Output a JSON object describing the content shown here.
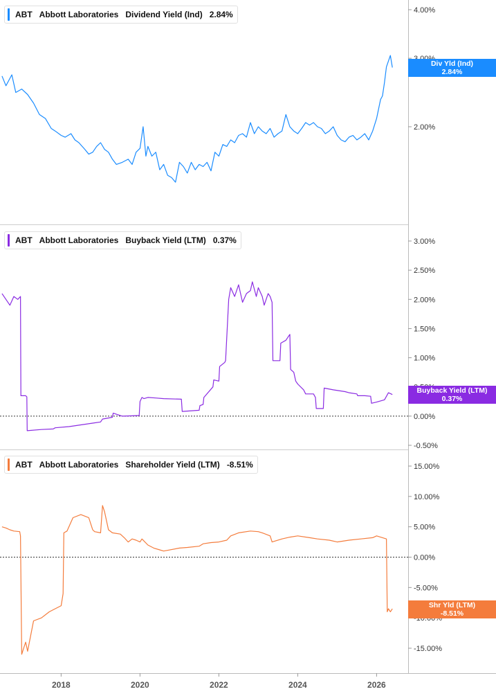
{
  "panels": [
    {
      "ticker": "ABT",
      "company": "Abbott Laboratories",
      "metric": "Dividend Yield (Ind)",
      "value": "2.84%",
      "tag_line1": "Div Yld (Ind)",
      "tag_line2": "2.84%",
      "color": "#1a8cff",
      "tag_color": "#1a8cff"
    },
    {
      "ticker": "ABT",
      "company": "Abbott Laboratories",
      "metric": "Buyback Yield (LTM)",
      "value": "0.37%",
      "tag_line1": "Buyback Yield (LTM)",
      "tag_line2": "0.37%",
      "color": "#8a2be2",
      "tag_color": "#8a2be2"
    },
    {
      "ticker": "ABT",
      "company": "Abbott Laboratories",
      "metric": "Shareholder Yield (LTM)",
      "value": "-8.51%",
      "tag_line1": "Shr Yld (LTM)",
      "tag_line2": "-8.51%",
      "color": "#f47c3c",
      "tag_color": "#f47c3c"
    }
  ],
  "chart_data": [
    {
      "type": "line",
      "title": "",
      "series": [
        {
          "name": "Dividend Yield (Ind)",
          "x": [
            2016.5,
            2016.6,
            2016.75,
            2016.85,
            2017.0,
            2017.15,
            2017.3,
            2017.45,
            2017.6,
            2017.75,
            2017.85,
            2018.0,
            2018.1,
            2018.25,
            2018.35,
            2018.45,
            2018.6,
            2018.7,
            2018.8,
            2018.9,
            2019.0,
            2019.1,
            2019.2,
            2019.3,
            2019.4,
            2019.55,
            2019.7,
            2019.8,
            2019.9,
            2020.0,
            2020.08,
            2020.15,
            2020.2,
            2020.3,
            2020.4,
            2020.5,
            2020.6,
            2020.7,
            2020.8,
            2020.9,
            2021.0,
            2021.1,
            2021.2,
            2021.3,
            2021.4,
            2021.5,
            2021.6,
            2021.7,
            2021.8,
            2021.9,
            2022.0,
            2022.1,
            2022.2,
            2022.3,
            2022.4,
            2022.5,
            2022.6,
            2022.7,
            2022.8,
            2022.9,
            2023.0,
            2023.1,
            2023.2,
            2023.3,
            2023.4,
            2023.5,
            2023.6,
            2023.7,
            2023.8,
            2023.9,
            2024.0,
            2024.1,
            2024.2,
            2024.3,
            2024.4,
            2024.5,
            2024.6,
            2024.7,
            2024.8,
            2024.9,
            2025.0,
            2025.1,
            2025.2,
            2025.3,
            2025.4,
            2025.5,
            2025.6,
            2025.7,
            2025.8,
            2025.9,
            2026.0,
            2026.1,
            2026.15,
            2026.2,
            2026.25,
            2026.3,
            2026.35,
            2026.4
          ],
          "y": [
            2.7,
            2.55,
            2.72,
            2.45,
            2.5,
            2.42,
            2.3,
            2.15,
            2.1,
            1.98,
            1.95,
            1.9,
            1.88,
            1.92,
            1.85,
            1.82,
            1.75,
            1.7,
            1.72,
            1.78,
            1.82,
            1.75,
            1.72,
            1.65,
            1.6,
            1.62,
            1.65,
            1.6,
            1.72,
            1.76,
            2.0,
            1.68,
            1.78,
            1.68,
            1.72,
            1.55,
            1.6,
            1.5,
            1.48,
            1.44,
            1.62,
            1.58,
            1.52,
            1.62,
            1.55,
            1.6,
            1.58,
            1.62,
            1.54,
            1.72,
            1.68,
            1.8,
            1.78,
            1.85,
            1.82,
            1.9,
            1.92,
            1.88,
            2.05,
            1.92,
            2.0,
            1.95,
            1.92,
            1.98,
            1.88,
            1.92,
            1.95,
            2.15,
            2.0,
            1.95,
            1.92,
            1.98,
            2.05,
            2.02,
            2.05,
            2.0,
            1.98,
            1.92,
            1.95,
            2.0,
            1.9,
            1.85,
            1.83,
            1.88,
            1.9,
            1.85,
            1.88,
            1.92,
            1.85,
            1.95,
            2.1,
            2.35,
            2.4,
            2.6,
            2.85,
            2.95,
            3.05,
            2.84
          ]
        }
      ],
      "y_ticks": [
        "4.00%",
        "3.00%",
        "2.00%"
      ],
      "y_tick_values": [
        4.0,
        3.0,
        2.0
      ],
      "ylim": [
        1.3,
        4.2
      ],
      "y_scale": "log"
    },
    {
      "type": "line",
      "title": "",
      "series": [
        {
          "name": "Buyback Yield (LTM)",
          "x": [
            2016.5,
            2016.6,
            2016.7,
            2016.8,
            2016.9,
            2016.97,
            2016.98,
            2017.1,
            2017.13,
            2017.14,
            2017.5,
            2017.8,
            2017.85,
            2018.2,
            2018.5,
            2018.8,
            2019.0,
            2019.05,
            2019.3,
            2019.32,
            2019.55,
            2019.57,
            2019.98,
            2020.0,
            2020.05,
            2020.1,
            2020.2,
            2020.4,
            2020.6,
            2021.05,
            2021.07,
            2021.5,
            2021.52,
            2021.6,
            2021.62,
            2021.85,
            2021.87,
            2022.0,
            2022.02,
            2022.15,
            2022.17,
            2022.25,
            2022.3,
            2022.4,
            2022.5,
            2022.6,
            2022.7,
            2022.8,
            2022.85,
            2022.95,
            2023.0,
            2023.1,
            2023.15,
            2023.25,
            2023.3,
            2023.35,
            2023.37,
            2023.55,
            2023.57,
            2023.7,
            2023.75,
            2023.8,
            2023.82,
            2023.9,
            2023.95,
            2024.0,
            2024.15,
            2024.2,
            2024.4,
            2024.45,
            2024.47,
            2024.65,
            2024.67,
            2024.9,
            2025.2,
            2025.3,
            2025.5,
            2025.52,
            2025.7,
            2025.85,
            2025.87,
            2026.0,
            2026.2,
            2026.3,
            2026.4
          ],
          "y": [
            2.1,
            2.0,
            1.9,
            2.05,
            2.0,
            2.05,
            0.35,
            0.35,
            0.33,
            -0.25,
            -0.23,
            -0.22,
            -0.2,
            -0.18,
            -0.15,
            -0.12,
            -0.1,
            -0.05,
            -0.02,
            0.05,
            0.0,
            0.0,
            0.01,
            0.25,
            0.32,
            0.3,
            0.32,
            0.31,
            0.3,
            0.29,
            0.08,
            0.1,
            0.18,
            0.2,
            0.32,
            0.5,
            0.62,
            0.6,
            0.85,
            0.92,
            0.95,
            2.0,
            2.2,
            2.05,
            2.25,
            1.95,
            2.1,
            2.15,
            2.3,
            2.05,
            2.2,
            2.05,
            1.9,
            2.1,
            2.05,
            1.95,
            0.95,
            0.95,
            1.25,
            1.3,
            1.35,
            1.4,
            0.8,
            0.75,
            0.6,
            0.55,
            0.45,
            0.38,
            0.38,
            0.32,
            0.13,
            0.13,
            0.48,
            0.45,
            0.42,
            0.4,
            0.38,
            0.35,
            0.35,
            0.34,
            0.22,
            0.24,
            0.28,
            0.4,
            0.37
          ]
        }
      ],
      "y_ticks": [
        "3.00%",
        "2.50%",
        "2.00%",
        "1.50%",
        "1.00%",
        "0.50%",
        "0.00%",
        "-0.50%"
      ],
      "y_tick_values": [
        3.0,
        2.5,
        2.0,
        1.5,
        1.0,
        0.5,
        0.0,
        -0.5
      ],
      "ylim": [
        -0.5,
        3.0
      ],
      "zero_line": true
    },
    {
      "type": "line",
      "title": "",
      "series": [
        {
          "name": "Shareholder Yield (LTM)",
          "x": [
            2016.5,
            2016.6,
            2016.7,
            2016.8,
            2016.95,
            2016.97,
            2017.0,
            2017.05,
            2017.1,
            2017.15,
            2017.3,
            2017.5,
            2017.7,
            2017.85,
            2018.0,
            2018.05,
            2018.07,
            2018.15,
            2018.3,
            2018.5,
            2018.7,
            2018.8,
            2018.85,
            2019.0,
            2019.05,
            2019.1,
            2019.2,
            2019.3,
            2019.5,
            2019.6,
            2019.7,
            2019.8,
            2019.9,
            2020.0,
            2020.05,
            2020.2,
            2020.35,
            2020.5,
            2020.6,
            2021.0,
            2021.2,
            2021.5,
            2021.6,
            2021.8,
            2022.0,
            2022.2,
            2022.3,
            2022.5,
            2022.8,
            2023.0,
            2023.1,
            2023.3,
            2023.35,
            2023.6,
            2023.8,
            2024.0,
            2024.3,
            2024.5,
            2024.8,
            2025.0,
            2025.3,
            2025.6,
            2025.9,
            2026.0,
            2026.25,
            2026.27,
            2026.3,
            2026.35,
            2026.4
          ],
          "y": [
            5.0,
            4.8,
            4.5,
            4.3,
            4.2,
            3.5,
            -16.0,
            -15.0,
            -14.0,
            -15.5,
            -10.5,
            -10.0,
            -9.0,
            -8.5,
            -8.0,
            -6.0,
            4.0,
            4.3,
            6.5,
            7.0,
            6.5,
            4.5,
            4.2,
            4.0,
            8.5,
            7.5,
            4.5,
            4.0,
            3.8,
            3.2,
            2.5,
            3.0,
            2.8,
            2.5,
            3.0,
            2.0,
            1.5,
            1.2,
            1.0,
            1.5,
            1.6,
            1.8,
            2.2,
            2.4,
            2.5,
            2.8,
            3.5,
            4.0,
            4.3,
            4.2,
            4.0,
            3.5,
            2.5,
            3.0,
            3.3,
            3.5,
            3.2,
            3.0,
            2.8,
            2.5,
            2.8,
            3.0,
            3.2,
            3.5,
            3.0,
            -9.0,
            -8.5,
            -9.0,
            -8.51
          ]
        }
      ],
      "y_ticks": [
        "15.00%",
        "10.00%",
        "5.00%",
        "0.00%",
        "-5.00%",
        "-10.00%",
        "-15.00%"
      ],
      "y_tick_values": [
        15.0,
        10.0,
        5.0,
        0.0,
        -5.0,
        -10.0,
        -15.0
      ],
      "ylim": [
        -17.5,
        17.0
      ],
      "zero_line": true
    }
  ],
  "x_axis": {
    "ticks": [
      "2018",
      "2020",
      "2022",
      "2024",
      "2026"
    ],
    "tick_values": [
      2018,
      2020,
      2022,
      2024,
      2026
    ],
    "xlim": [
      2016.45,
      2026.8
    ]
  }
}
